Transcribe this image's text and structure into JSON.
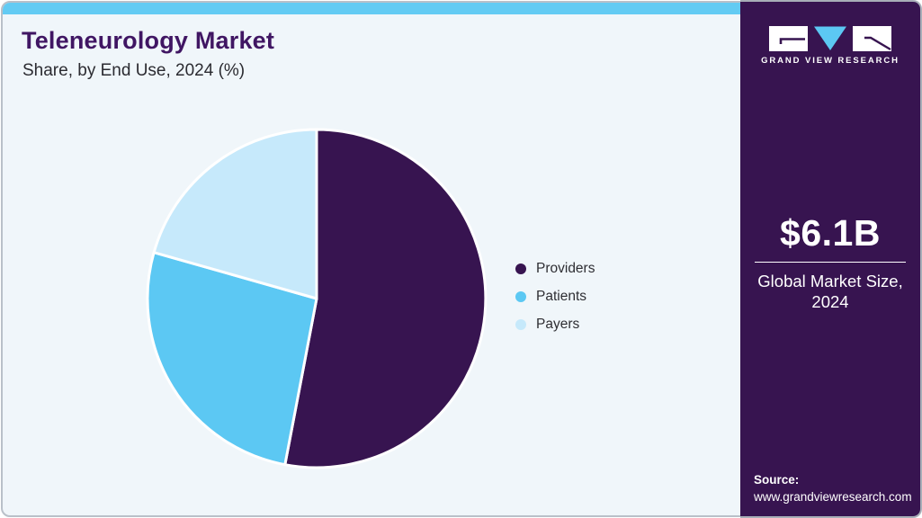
{
  "header": {
    "title": "Teleneurology Market",
    "subtitle": "Share, by End Use, 2024 (%)"
  },
  "chart_data": {
    "type": "pie",
    "title": "Teleneurology Market Share, by End Use, 2024 (%)",
    "categories": [
      "Providers",
      "Patients",
      "Payers"
    ],
    "values": [
      53.0,
      26.4,
      20.6
    ],
    "unit": "%",
    "colors": [
      "#371450",
      "#5CC8F3",
      "#C6E9FB"
    ],
    "legend_position": "right",
    "start_angle_deg": 0,
    "direction": "clockwise",
    "data_labels": false
  },
  "sidebar": {
    "brand": "GRAND VIEW RESEARCH",
    "market_size_value": "$6.1B",
    "market_size_label": "Global Market Size, 2024",
    "source_label": "Source:",
    "source_url": "www.grandviewresearch.com"
  },
  "colors": {
    "accent_bar": "#63CBF3",
    "card_background": "#F0F6FA",
    "sidebar_background": "#371450",
    "title_text": "#401663",
    "body_text": "#2E2E33",
    "slice_stroke": "#FFFFFF"
  }
}
